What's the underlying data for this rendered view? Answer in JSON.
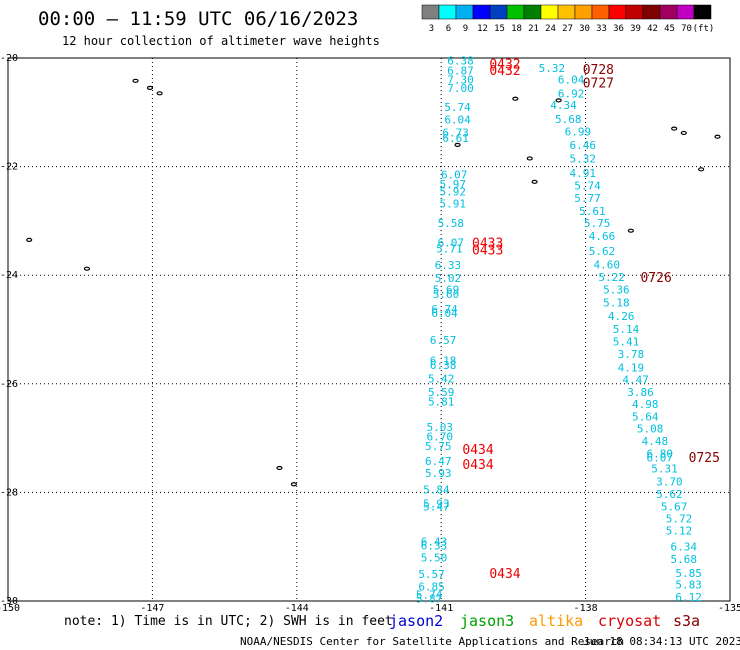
{
  "header": {
    "title": "00:00 – 11:59 UTC 06/16/2023",
    "subtitle": "12 hour collection of altimeter wave heights"
  },
  "colorbar": {
    "colors": [
      "#808080",
      "#00ffff",
      "#00b0f0",
      "#0000ff",
      "#0040c0",
      "#00c000",
      "#008000",
      "#ffff00",
      "#ffc000",
      "#ffa000",
      "#ff6000",
      "#ff0000",
      "#c00000",
      "#800000",
      "#a00060",
      "#c000c0",
      "#000000"
    ],
    "ticks": [
      "3",
      "6",
      "9",
      "12",
      "15",
      "18",
      "21",
      "24",
      "27",
      "30",
      "33",
      "36",
      "39",
      "42",
      "45",
      "70",
      "(ft)"
    ]
  },
  "footer": {
    "note": "note: 1) Time is in UTC; 2) SWH is in feet",
    "credit": "NOAA/NESDIS Center for Satellite Applications and Research",
    "timestamp": "Jun 18 08:34:13 UTC 2023"
  },
  "legend": [
    {
      "name": "jason2",
      "color": "#0000d0"
    },
    {
      "name": "jason3",
      "color": "#00a000"
    },
    {
      "name": "altika",
      "color": "#ff9900"
    },
    {
      "name": "cryosat",
      "color": "#dd0000"
    },
    {
      "name": "s3a",
      "color": "#800000"
    }
  ],
  "chart_data": {
    "type": "scatter",
    "xlim": [
      -150,
      -135
    ],
    "ylim": [
      -30,
      -20
    ],
    "x_ticks": [
      "-150",
      "-147",
      "-144",
      "-141",
      "-138",
      "-135"
    ],
    "y_ticks": [
      "-20",
      "-22",
      "-24",
      "-26",
      "-28",
      "-30"
    ],
    "grid": true,
    "point_color": "#00c0e0",
    "tracks": [
      {
        "name": "track-west",
        "points": [
          {
            "lon": -140.6,
            "lat": -20.05,
            "value": "6.38"
          },
          {
            "lon": -140.6,
            "lat": -20.23,
            "value": "6.87"
          },
          {
            "lon": -140.6,
            "lat": -20.4,
            "value": "7.30"
          },
          {
            "lon": -140.6,
            "lat": -20.55,
            "value": "7.00"
          },
          {
            "lon": -140.66,
            "lat": -20.9,
            "value": "5.74"
          },
          {
            "lon": -140.66,
            "lat": -21.13,
            "value": "6.04"
          },
          {
            "lon": -140.7,
            "lat": -21.37,
            "value": "6.73"
          },
          {
            "lon": -140.7,
            "lat": -21.47,
            "value": "6.61"
          },
          {
            "lon": -140.73,
            "lat": -22.15,
            "value": "6.07"
          },
          {
            "lon": -140.76,
            "lat": -22.32,
            "value": "5.97"
          },
          {
            "lon": -140.76,
            "lat": -22.46,
            "value": "5.92"
          },
          {
            "lon": -140.76,
            "lat": -22.68,
            "value": "5.91"
          },
          {
            "lon": -140.8,
            "lat": -23.04,
            "value": "5.58"
          },
          {
            "lon": -140.8,
            "lat": -23.4,
            "value": "6.07"
          },
          {
            "lon": -140.83,
            "lat": -23.51,
            "value": "5.71"
          },
          {
            "lon": -140.86,
            "lat": -23.81,
            "value": "6.33"
          },
          {
            "lon": -140.86,
            "lat": -24.05,
            "value": "5.02"
          },
          {
            "lon": -140.9,
            "lat": -24.26,
            "value": "5.69"
          },
          {
            "lon": -140.9,
            "lat": -24.35,
            "value": "5.60"
          },
          {
            "lon": -140.93,
            "lat": -24.62,
            "value": "6.74"
          },
          {
            "lon": -140.93,
            "lat": -24.7,
            "value": "6.04"
          },
          {
            "lon": -140.96,
            "lat": -25.19,
            "value": "6.57"
          },
          {
            "lon": -140.96,
            "lat": -25.57,
            "value": "6.18"
          },
          {
            "lon": -140.96,
            "lat": -25.65,
            "value": "6.38"
          },
          {
            "lon": -141.0,
            "lat": -25.9,
            "value": "5.42"
          },
          {
            "lon": -141.0,
            "lat": -26.15,
            "value": "5.59"
          },
          {
            "lon": -141.0,
            "lat": -26.33,
            "value": "5.81"
          },
          {
            "lon": -141.03,
            "lat": -26.8,
            "value": "5.03"
          },
          {
            "lon": -141.03,
            "lat": -26.97,
            "value": "6.70"
          },
          {
            "lon": -141.06,
            "lat": -27.15,
            "value": "5.75"
          },
          {
            "lon": -141.06,
            "lat": -27.42,
            "value": "6.47"
          },
          {
            "lon": -141.06,
            "lat": -27.64,
            "value": "5.93"
          },
          {
            "lon": -141.1,
            "lat": -27.95,
            "value": "5.84"
          },
          {
            "lon": -141.1,
            "lat": -28.2,
            "value": "5.93"
          },
          {
            "lon": -141.1,
            "lat": -28.26,
            "value": "5.47"
          },
          {
            "lon": -141.15,
            "lat": -28.9,
            "value": "6.43"
          },
          {
            "lon": -141.15,
            "lat": -28.98,
            "value": "6.33"
          },
          {
            "lon": -141.15,
            "lat": -29.2,
            "value": "5.50"
          },
          {
            "lon": -141.2,
            "lat": -29.5,
            "value": "5.57"
          },
          {
            "lon": -141.2,
            "lat": -29.73,
            "value": "6.85"
          },
          {
            "lon": -141.25,
            "lat": -29.88,
            "value": "5.74"
          },
          {
            "lon": -141.25,
            "lat": -29.95,
            "value": "5.87"
          }
        ]
      },
      {
        "name": "track-east",
        "points": [
          {
            "lon": -138.7,
            "lat": -20.18,
            "value": "5.32"
          },
          {
            "lon": -138.3,
            "lat": -20.4,
            "value": "6.04"
          },
          {
            "lon": -138.3,
            "lat": -20.65,
            "value": "6.92"
          },
          {
            "lon": -138.46,
            "lat": -20.87,
            "value": "4.34"
          },
          {
            "lon": -138.36,
            "lat": -21.12,
            "value": "5.68"
          },
          {
            "lon": -138.16,
            "lat": -21.35,
            "value": "6.99"
          },
          {
            "lon": -138.06,
            "lat": -21.6,
            "value": "6.46"
          },
          {
            "lon": -138.06,
            "lat": -21.85,
            "value": "5.32"
          },
          {
            "lon": -138.06,
            "lat": -22.12,
            "value": "4.91"
          },
          {
            "lon": -137.96,
            "lat": -22.35,
            "value": "5.74"
          },
          {
            "lon": -137.96,
            "lat": -22.58,
            "value": "5.77"
          },
          {
            "lon": -137.86,
            "lat": -22.82,
            "value": "5.61"
          },
          {
            "lon": -137.76,
            "lat": -23.04,
            "value": "5.75"
          },
          {
            "lon": -137.66,
            "lat": -23.28,
            "value": "4.66"
          },
          {
            "lon": -137.66,
            "lat": -23.55,
            "value": "5.62"
          },
          {
            "lon": -137.56,
            "lat": -23.8,
            "value": "4.60"
          },
          {
            "lon": -137.46,
            "lat": -24.03,
            "value": "5.22"
          },
          {
            "lon": -137.36,
            "lat": -24.26,
            "value": "5.36"
          },
          {
            "lon": -137.36,
            "lat": -24.5,
            "value": "5.18"
          },
          {
            "lon": -137.26,
            "lat": -24.75,
            "value": "4.26"
          },
          {
            "lon": -137.16,
            "lat": -24.99,
            "value": "5.14"
          },
          {
            "lon": -137.16,
            "lat": -25.22,
            "value": "5.41"
          },
          {
            "lon": -137.06,
            "lat": -25.45,
            "value": "3.78"
          },
          {
            "lon": -137.06,
            "lat": -25.7,
            "value": "4.19"
          },
          {
            "lon": -136.96,
            "lat": -25.92,
            "value": "4.47"
          },
          {
            "lon": -136.86,
            "lat": -26.15,
            "value": "3.86"
          },
          {
            "lon": -136.76,
            "lat": -26.37,
            "value": "4.98"
          },
          {
            "lon": -136.76,
            "lat": -26.6,
            "value": "5.64"
          },
          {
            "lon": -136.66,
            "lat": -26.82,
            "value": "5.08"
          },
          {
            "lon": -136.56,
            "lat": -27.05,
            "value": "4.48"
          },
          {
            "lon": -136.46,
            "lat": -27.28,
            "value": "6.80"
          },
          {
            "lon": -136.46,
            "lat": -27.36,
            "value": "6.07"
          },
          {
            "lon": -136.36,
            "lat": -27.56,
            "value": "5.31"
          },
          {
            "lon": -136.26,
            "lat": -27.8,
            "value": "3.70"
          },
          {
            "lon": -136.26,
            "lat": -28.03,
            "value": "5.62"
          },
          {
            "lon": -136.16,
            "lat": -28.26,
            "value": "5.67"
          },
          {
            "lon": -136.06,
            "lat": -28.48,
            "value": "5.72"
          },
          {
            "lon": -136.06,
            "lat": -28.7,
            "value": "5.12"
          },
          {
            "lon": -135.96,
            "lat": -29.0,
            "value": "6.34"
          },
          {
            "lon": -135.96,
            "lat": -29.23,
            "value": "5.68"
          },
          {
            "lon": -135.86,
            "lat": -29.48,
            "value": "5.85"
          },
          {
            "lon": -135.86,
            "lat": -29.7,
            "value": "5.83"
          },
          {
            "lon": -135.86,
            "lat": -29.93,
            "value": "6.12"
          }
        ]
      }
    ],
    "time_labels": [
      {
        "lon": -140.0,
        "lat": -20.1,
        "text": "0432",
        "color": "#ee0000"
      },
      {
        "lon": -140.0,
        "lat": -20.22,
        "text": "0432",
        "color": "#ee0000"
      },
      {
        "lon": -138.06,
        "lat": -20.2,
        "text": "0728",
        "color": "#880000"
      },
      {
        "lon": -138.06,
        "lat": -20.45,
        "text": "0727",
        "color": "#880000"
      },
      {
        "lon": -140.36,
        "lat": -23.4,
        "text": "0433",
        "color": "#ee0000"
      },
      {
        "lon": -140.36,
        "lat": -23.53,
        "text": "0433",
        "color": "#ee0000"
      },
      {
        "lon": -136.86,
        "lat": -24.03,
        "text": "0726",
        "color": "#880000"
      },
      {
        "lon": -140.56,
        "lat": -27.2,
        "text": "0434",
        "color": "#ee0000"
      },
      {
        "lon": -140.56,
        "lat": -27.48,
        "text": "0434",
        "color": "#ee0000"
      },
      {
        "lon": -140.0,
        "lat": -29.48,
        "text": "0434",
        "color": "#ee0000"
      },
      {
        "lon": -135.86,
        "lat": -27.35,
        "text": "0725",
        "color": "#880000"
      }
    ],
    "islands": [
      {
        "lon": -147.35,
        "lat": -20.42
      },
      {
        "lon": -147.05,
        "lat": -20.55
      },
      {
        "lon": -146.85,
        "lat": -20.65
      },
      {
        "lon": -149.56,
        "lat": -23.35
      },
      {
        "lon": -148.36,
        "lat": -23.88
      },
      {
        "lon": -144.36,
        "lat": -27.55
      },
      {
        "lon": -144.06,
        "lat": -27.85
      },
      {
        "lon": -139.46,
        "lat": -20.75
      },
      {
        "lon": -138.56,
        "lat": -20.78
      },
      {
        "lon": -140.66,
        "lat": -21.6
      },
      {
        "lon": -139.16,
        "lat": -21.85
      },
      {
        "lon": -139.06,
        "lat": -22.28
      },
      {
        "lon": -137.06,
        "lat": -23.18
      },
      {
        "lon": -136.16,
        "lat": -21.3
      },
      {
        "lon": -135.96,
        "lat": -21.38
      },
      {
        "lon": -135.6,
        "lat": -22.05
      },
      {
        "lon": -135.26,
        "lat": -21.45
      }
    ]
  }
}
